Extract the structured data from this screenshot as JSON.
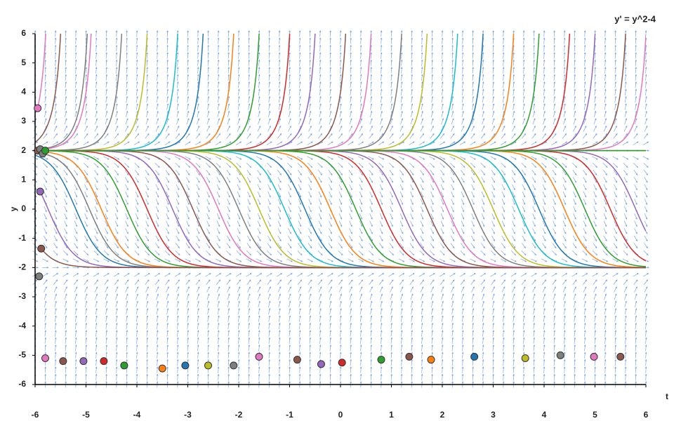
{
  "chart_data": {
    "type": "slope-field",
    "title": "y' = y^2-4",
    "x_label": "t",
    "y_label": "y",
    "xlim": [
      -6,
      6
    ],
    "ylim": [
      -6,
      6
    ],
    "xticks": [
      -6,
      -5,
      -4,
      -3,
      -2,
      -1,
      0,
      1,
      2,
      3,
      4,
      5,
      6
    ],
    "yticks": [
      -6,
      -5,
      -4,
      -3,
      -2,
      -1,
      0,
      1,
      2,
      3,
      4,
      5,
      6
    ],
    "field_color": "#7fa8e0",
    "palette": [
      "#1f77b4",
      "#ff7f0e",
      "#2ca02c",
      "#d62728",
      "#9467bd",
      "#8c564b",
      "#e377c2",
      "#7f7f7f",
      "#bcbd22",
      "#17becf"
    ],
    "points": {
      "t": [
        -5.95,
        -5.95,
        -5.9,
        -5.85,
        -5.8,
        -5.9,
        -5.88,
        -5.92,
        -5.8,
        -5.45,
        -5.05,
        -4.65,
        -4.25,
        -3.5,
        -3.05,
        -2.6,
        -2.1,
        -1.6,
        -0.85,
        -0.38,
        0.03,
        0.8,
        1.35,
        1.78,
        2.63,
        3.63,
        4.32,
        4.98,
        5.5
      ],
      "y": [
        3.45,
        2,
        2.05,
        1.9,
        2,
        0.6,
        -1.35,
        -2.3,
        -5.1,
        -5.2,
        -5.2,
        -5.2,
        -5.35,
        -5.45,
        -5.35,
        -5.35,
        -5.35,
        -5.05,
        -5.15,
        -5.3,
        -5.25,
        -5.15,
        -5.05,
        -5.15,
        -5.05,
        -5.1,
        -5.0,
        -5.05,
        -5.05
      ],
      "colors": [
        "#e377c2",
        "#8c564b",
        "#7f7f7f",
        "#7f7f7f",
        "#2ca02c",
        "#9467bd",
        "#8c564b",
        "#7f7f7f",
        "#e377c2",
        "#8c564b",
        "#9467bd",
        "#d62728",
        "#2ca02c",
        "#ff7f0e",
        "#1f77b4",
        "#bcbd22",
        "#7f7f7f",
        "#e377c2",
        "#8c564b",
        "#9467bd",
        "#d62728",
        "#2ca02c",
        "#8c564b",
        "#ff7f0e",
        "#1f77b4",
        "#bcbd22",
        "#7f7f7f",
        "#e377c2",
        "#8c564b"
      ]
    },
    "curves": {
      "t": [
        -5.2,
        -4.7,
        -4.2,
        -3.8,
        -3.3,
        -2.9,
        -2.4,
        -2.0,
        -1.6,
        -1.1,
        -0.7,
        -0.2,
        0.3,
        0.8,
        1.2,
        1.7,
        2.1,
        2.6,
        3.0,
        3.5,
        3.9,
        4.4,
        4.8,
        5.3,
        5.8,
        -5.6,
        -5.0,
        -4.4,
        -3.9,
        -3.3,
        -2.8,
        -2.2,
        -1.7,
        -1.1,
        -0.6,
        0,
        0.5,
        1.1,
        1.6,
        2.2,
        2.7,
        3.3,
        3.8,
        4.4,
        4.9,
        5.5,
        5.9
      ],
      "y": [
        0,
        0,
        0,
        0,
        0,
        0,
        0,
        0,
        0,
        0,
        0,
        0,
        0,
        0,
        0,
        0,
        0,
        0,
        0,
        0,
        0,
        0,
        0,
        0,
        0,
        4,
        4,
        4,
        4,
        4,
        4,
        4,
        4,
        4,
        4,
        4,
        4,
        4,
        4,
        4,
        4,
        4,
        4,
        4,
        4,
        4,
        4
      ]
    }
  }
}
